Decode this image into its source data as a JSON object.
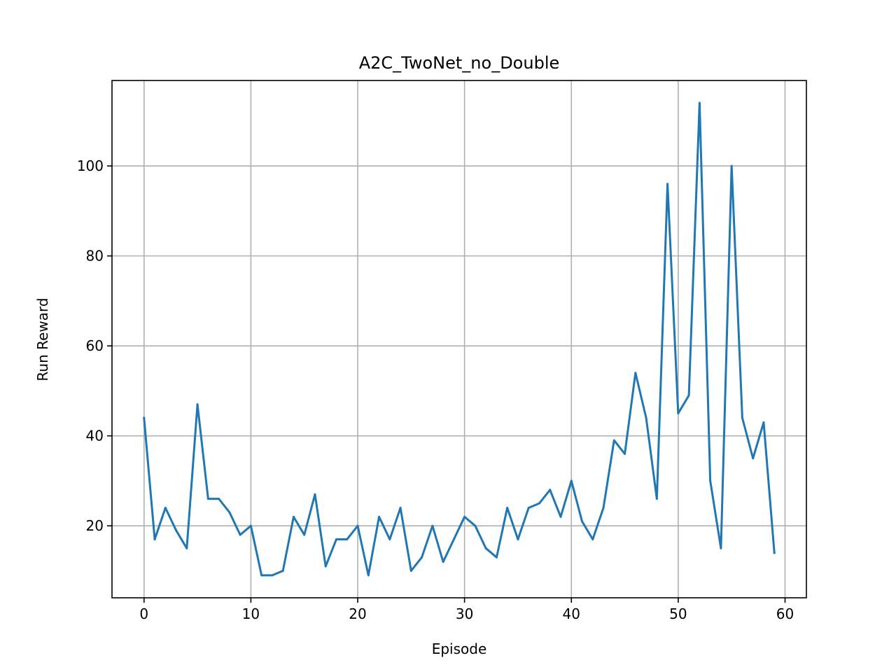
{
  "chart_data": {
    "type": "line",
    "title": "A2C_TwoNet_no_Double",
    "xlabel": "Episode",
    "ylabel": "Run Reward",
    "xlim": [
      -3,
      62
    ],
    "ylim": [
      4,
      119
    ],
    "xticks": [
      "0",
      "10",
      "20",
      "30",
      "40",
      "50",
      "60"
    ],
    "yticks": [
      "20",
      "40",
      "60",
      "80",
      "100"
    ],
    "grid": true,
    "line_color": "#1f77b4",
    "series": [
      {
        "x": [
          0,
          1,
          2,
          3,
          4,
          5,
          6,
          7,
          8,
          9,
          10,
          11,
          12,
          13,
          14,
          15,
          16,
          17,
          18,
          19,
          20,
          21,
          22,
          23,
          24,
          25,
          26,
          27,
          28,
          29,
          30,
          31,
          32,
          33,
          34,
          35,
          36,
          37,
          38,
          39,
          40,
          41,
          42,
          43,
          44,
          45,
          46,
          47,
          48,
          49,
          50,
          51,
          52,
          53,
          54,
          55,
          56,
          57,
          58,
          59
        ],
        "values": [
          44,
          17,
          24,
          19,
          15,
          47,
          26,
          26,
          23,
          18,
          20,
          9,
          9,
          10,
          22,
          18,
          27,
          11,
          17,
          17,
          20,
          9,
          22,
          17,
          24,
          10,
          13,
          20,
          12,
          17,
          22,
          20,
          15,
          13,
          24,
          17,
          24,
          25,
          28,
          22,
          30,
          21,
          17,
          24,
          39,
          36,
          54,
          44,
          26,
          96,
          45,
          49,
          114,
          30,
          15,
          100,
          44,
          35,
          43,
          14
        ]
      }
    ]
  }
}
